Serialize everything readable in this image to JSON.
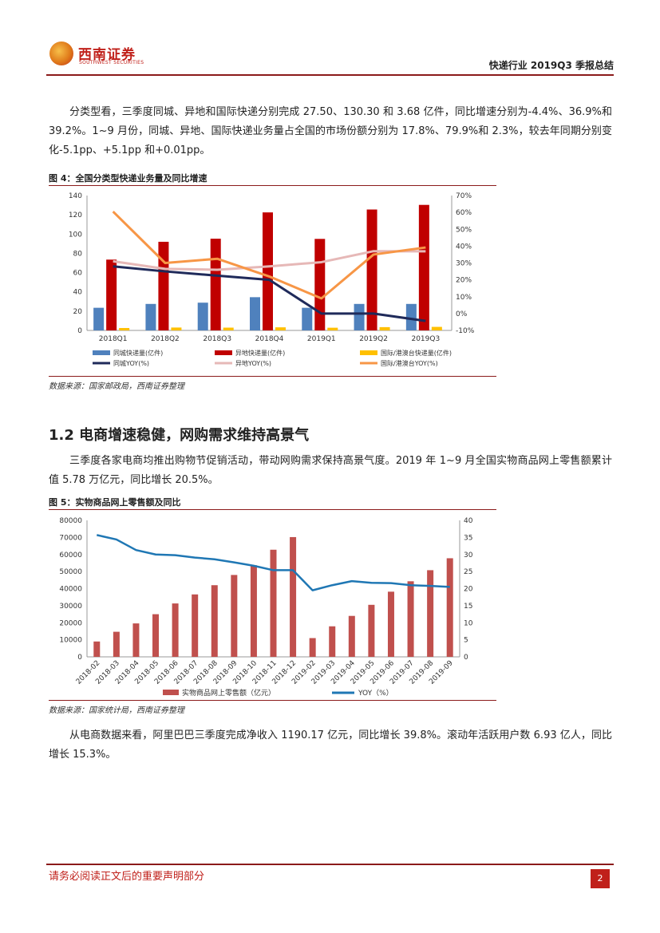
{
  "header": {
    "logo_cn": "西南证券",
    "logo_en": "SOUTHWEST SECURITIES",
    "report_title": "快递行业 2019Q3 季报总结"
  },
  "paragraphs": {
    "p1": "分类型看，三季度同城、异地和国际快递分别完成 27.50、130.30 和 3.68 亿件，同比增速分别为-4.4%、36.9%和 39.2%。1~9 月份，同城、异地、国际快递业务量占全国的市场份额分别为 17.8%、79.9%和 2.3%，较去年同期分别变化-5.1pp、+5.1pp 和+0.01pp。",
    "p2": "三季度各家电商均推出购物节促销活动，带动网购需求保持高景气度。2019 年 1~9 月全国实物商品网上零售额累计值 5.78 万亿元，同比增长 20.5%。",
    "p3": "从电商数据来看，阿里巴巴三季度完成净收入 1190.17 亿元，同比增长 39.8%。滚动年活跃用户数 6.93 亿人，同比增长 15.3%。"
  },
  "figure4": {
    "title": "图 4：全国分类型快递业务量及同比增速",
    "source": "数据来源：国家邮政局，西南证券整理"
  },
  "section": {
    "title": "1.2  电商增速稳健，网购需求维持高景气"
  },
  "figure5": {
    "title": "图 5：实物商品网上零售额及同比",
    "source": "数据来源：国家统计局，西南证券整理"
  },
  "footer": {
    "notice": "请务必阅读正文后的重要声明部分",
    "page": "2"
  },
  "colors": {
    "brand_red": "#c0201a",
    "rule": "#8b1a1a",
    "blue_bar": "#4f81bd",
    "red_bar": "#c00000",
    "yellow_bar": "#ffc000",
    "navy_line": "#1f2a5a",
    "pink_line": "#e6b8b7",
    "orange_line": "#f79646",
    "f5_bar": "#c0504d",
    "f5_line": "#1f77b4"
  },
  "chart_data": [
    {
      "id": "fig4",
      "type": "bar",
      "categories": [
        "2018Q1",
        "2018Q2",
        "2018Q3",
        "2018Q4",
        "2019Q1",
        "2019Q2",
        "2019Q3"
      ],
      "y_left_lim": [
        0,
        140
      ],
      "y_left_ticks": [
        0,
        20,
        40,
        60,
        80,
        100,
        120,
        140
      ],
      "y_right_lim": [
        -10,
        70
      ],
      "y_right_ticks": [
        "-10%",
        "0%",
        "10%",
        "20%",
        "30%",
        "40%",
        "50%",
        "60%",
        "70%"
      ],
      "legend_position": "bottom",
      "bar_series": [
        {
          "name": "同城快递量(亿件)",
          "values": [
            23.5,
            27.5,
            28.8,
            34.5,
            23.5,
            27.5,
            27.5
          ]
        },
        {
          "name": "异地快递量(亿件)",
          "values": [
            73.5,
            92.0,
            95.2,
            122.5,
            95.0,
            125.5,
            130.3
          ]
        },
        {
          "name": "国际/港澳台快递量(亿件)",
          "values": [
            2.5,
            3.0,
            2.9,
            3.2,
            2.8,
            3.4,
            3.68
          ]
        }
      ],
      "line_series": [
        {
          "name": "同城YOY(%)",
          "values": [
            28.0,
            25.0,
            22.5,
            20.0,
            0.0,
            0.0,
            -4.4
          ]
        },
        {
          "name": "异地YOY(%)",
          "values": [
            31.0,
            26.5,
            26.0,
            28.0,
            30.5,
            37.0,
            36.9
          ]
        },
        {
          "name": "国际/港澳台YOY(%)",
          "values": [
            60.5,
            30.0,
            32.5,
            22.0,
            9.0,
            35.0,
            39.2
          ]
        }
      ]
    },
    {
      "id": "fig5",
      "type": "bar",
      "categories": [
        "2018-02",
        "2018-03",
        "2018-04",
        "2018-05",
        "2018-06",
        "2018-07",
        "2018-08",
        "2018-09",
        "2018-10",
        "2018-11",
        "2018-12",
        "2019-02",
        "2019-03",
        "2019-04",
        "2019-05",
        "2019-06",
        "2019-07",
        "2019-08",
        "2019-09"
      ],
      "y_left_lim": [
        0,
        80000
      ],
      "y_left_ticks": [
        0,
        10000,
        20000,
        30000,
        40000,
        50000,
        60000,
        70000,
        80000
      ],
      "y_right_lim": [
        0,
        40
      ],
      "y_right_ticks": [
        0,
        5,
        10,
        15,
        20,
        25,
        30,
        35,
        40
      ],
      "legend_position": "bottom",
      "bar_series": [
        {
          "name": "实物商品网上零售额（亿元）",
          "values": [
            9000,
            14700,
            19600,
            25000,
            31300,
            36600,
            42000,
            48000,
            53700,
            62800,
            70200,
            11000,
            17900,
            24000,
            30500,
            38200,
            44300,
            50800,
            57800
          ]
        }
      ],
      "line_series": [
        {
          "name": "YOY（%）",
          "values": [
            35.7,
            34.4,
            31.3,
            30.0,
            29.8,
            29.1,
            28.6,
            27.7,
            26.7,
            25.4,
            25.4,
            19.5,
            21.0,
            22.2,
            21.7,
            21.6,
            21.0,
            20.8,
            20.5
          ]
        }
      ]
    }
  ]
}
